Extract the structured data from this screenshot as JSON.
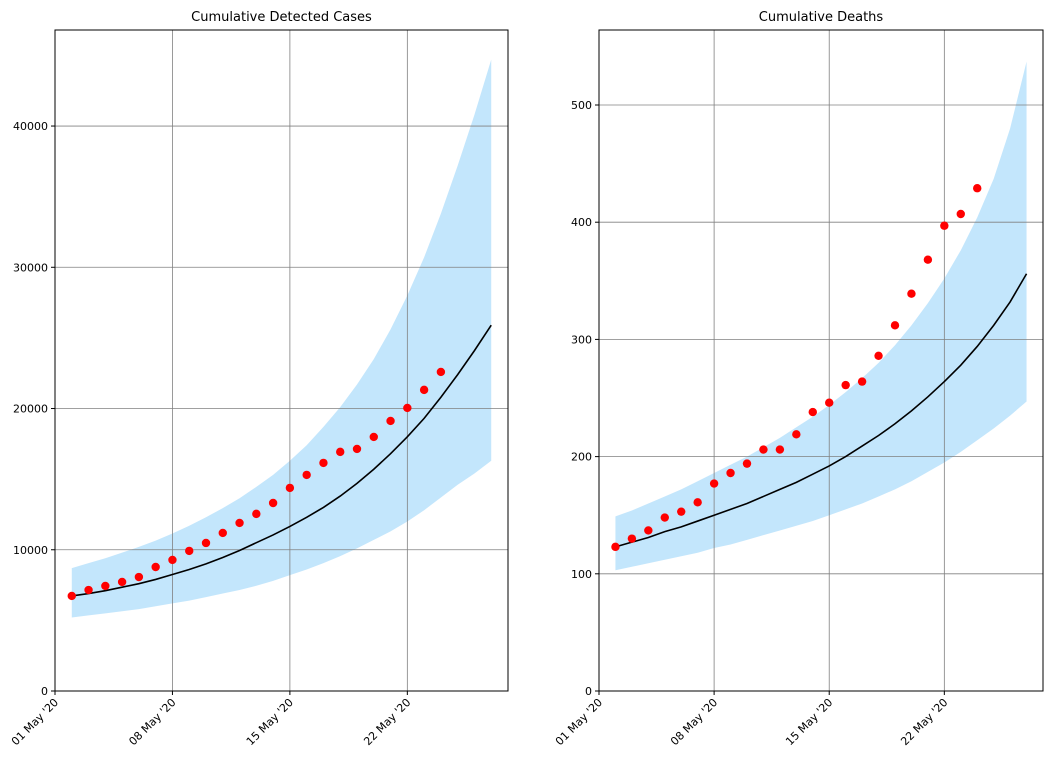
{
  "chart_data": [
    {
      "type": "line",
      "title": "Cumulative Detected Cases",
      "xlim": [
        "2020-05-01",
        "2020-05-28"
      ],
      "xticks": [
        {
          "value": "2020-05-01",
          "label": "01 May '20"
        },
        {
          "value": "2020-05-08",
          "label": "08 May '20"
        },
        {
          "value": "2020-05-15",
          "label": "15 May '20"
        },
        {
          "value": "2020-05-22",
          "label": "22 May '20"
        }
      ],
      "ylim": [
        0,
        46800
      ],
      "yticks": [
        0,
        10000,
        20000,
        30000,
        40000
      ],
      "grid": true,
      "x": [
        "2020-05-02",
        "2020-05-03",
        "2020-05-04",
        "2020-05-05",
        "2020-05-06",
        "2020-05-07",
        "2020-05-08",
        "2020-05-09",
        "2020-05-10",
        "2020-05-11",
        "2020-05-12",
        "2020-05-13",
        "2020-05-14",
        "2020-05-15",
        "2020-05-16",
        "2020-05-17",
        "2020-05-18",
        "2020-05-19",
        "2020-05-20",
        "2020-05-21",
        "2020-05-22",
        "2020-05-23",
        "2020-05-24",
        "2020-05-25",
        "2020-05-26",
        "2020-05-27"
      ],
      "band": {
        "color": "#87cefa",
        "lower": [
          5200,
          5350,
          5500,
          5650,
          5800,
          6000,
          6200,
          6400,
          6650,
          6900,
          7150,
          7450,
          7800,
          8200,
          8600,
          9050,
          9550,
          10100,
          10700,
          11300,
          12000,
          12800,
          13700,
          14600,
          15400,
          16300
        ],
        "upper": [
          8700,
          9050,
          9400,
          9800,
          10200,
          10650,
          11150,
          11700,
          12300,
          12950,
          13650,
          14450,
          15300,
          16300,
          17400,
          18700,
          20100,
          21700,
          23500,
          25600,
          28000,
          30700,
          33800,
          37200,
          40800,
          44700
        ]
      },
      "series": [
        {
          "color": "#000000",
          "values": [
            6730,
            6900,
            7100,
            7350,
            7600,
            7900,
            8250,
            8600,
            9000,
            9450,
            9950,
            10500,
            11050,
            11650,
            12300,
            13000,
            13800,
            14700,
            15700,
            16800,
            18000,
            19300,
            20800,
            22400,
            24100,
            25900
          ]
        }
      ],
      "points": {
        "color": "#ff0000",
        "x": [
          "2020-05-02",
          "2020-05-03",
          "2020-05-04",
          "2020-05-05",
          "2020-05-06",
          "2020-05-07",
          "2020-05-08",
          "2020-05-09",
          "2020-05-10",
          "2020-05-11",
          "2020-05-12",
          "2020-05-13",
          "2020-05-14",
          "2020-05-15",
          "2020-05-16",
          "2020-05-17",
          "2020-05-18",
          "2020-05-19",
          "2020-05-20",
          "2020-05-21",
          "2020-05-22",
          "2020-05-23",
          "2020-05-24"
        ],
        "values": [
          6730,
          7150,
          7440,
          7720,
          8070,
          8780,
          9280,
          9920,
          10480,
          11190,
          11900,
          12540,
          13310,
          14380,
          15300,
          16150,
          16930,
          17140,
          17990,
          19120,
          20040,
          21320,
          22590
        ]
      }
    },
    {
      "type": "line",
      "title": "Cumulative Deaths",
      "xlim": [
        "2020-05-01",
        "2020-05-28"
      ],
      "xticks": [
        {
          "value": "2020-05-01",
          "label": "01 May '20"
        },
        {
          "value": "2020-05-08",
          "label": "08 May '20"
        },
        {
          "value": "2020-05-15",
          "label": "15 May '20"
        },
        {
          "value": "2020-05-22",
          "label": "22 May '20"
        }
      ],
      "ylim": [
        0,
        564
      ],
      "yticks": [
        0,
        100,
        200,
        300,
        400,
        500
      ],
      "grid": true,
      "x": [
        "2020-05-02",
        "2020-05-03",
        "2020-05-04",
        "2020-05-05",
        "2020-05-06",
        "2020-05-07",
        "2020-05-08",
        "2020-05-09",
        "2020-05-10",
        "2020-05-11",
        "2020-05-12",
        "2020-05-13",
        "2020-05-14",
        "2020-05-15",
        "2020-05-16",
        "2020-05-17",
        "2020-05-18",
        "2020-05-19",
        "2020-05-20",
        "2020-05-21",
        "2020-05-22",
        "2020-05-23",
        "2020-05-24",
        "2020-05-25",
        "2020-05-26",
        "2020-05-27"
      ],
      "band": {
        "color": "#87cefa",
        "lower": [
          103,
          106,
          109,
          112,
          115,
          118,
          122,
          125,
          129,
          133,
          137,
          141,
          145,
          150,
          155,
          160,
          166,
          172,
          179,
          187,
          195,
          204,
          214,
          224,
          235,
          247
        ],
        "upper": [
          149,
          154,
          160,
          166,
          172,
          179,
          186,
          193,
          200,
          208,
          216,
          225,
          234,
          244,
          255,
          267,
          280,
          295,
          312,
          331,
          352,
          376,
          404,
          437,
          480,
          537
        ]
      },
      "series": [
        {
          "color": "#000000",
          "values": [
            123,
            127,
            131,
            136,
            140,
            145,
            150,
            155,
            160,
            166,
            172,
            178,
            185,
            192,
            200,
            209,
            218,
            228,
            239,
            251,
            264,
            278,
            294,
            312,
            332,
            356
          ]
        }
      ],
      "points": {
        "color": "#ff0000",
        "x": [
          "2020-05-02",
          "2020-05-03",
          "2020-05-04",
          "2020-05-05",
          "2020-05-06",
          "2020-05-07",
          "2020-05-08",
          "2020-05-09",
          "2020-05-10",
          "2020-05-11",
          "2020-05-12",
          "2020-05-13",
          "2020-05-14",
          "2020-05-15",
          "2020-05-16",
          "2020-05-17",
          "2020-05-18",
          "2020-05-19",
          "2020-05-20",
          "2020-05-21",
          "2020-05-22",
          "2020-05-23",
          "2020-05-24"
        ],
        "values": [
          123,
          130,
          137,
          148,
          153,
          161,
          177,
          186,
          194,
          206,
          206,
          219,
          238,
          246,
          261,
          264,
          286,
          312,
          339,
          368,
          397,
          407,
          429
        ]
      }
    }
  ]
}
